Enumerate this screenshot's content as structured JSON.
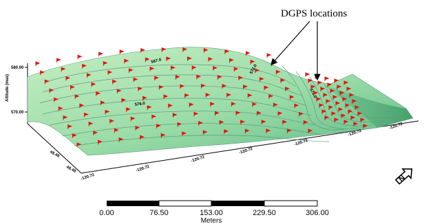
{
  "annotation": {
    "text": "DGPS locations"
  },
  "axes": {
    "z_label": "Altitude (mas)",
    "z_ticks": [
      "580.00",
      "570.00"
    ],
    "y_ticks": [
      "48.48",
      "48.48"
    ],
    "x_ticks": [
      "-120.72",
      "-120.72",
      "-120.72",
      "-120.72",
      "-120.72",
      "-120.72",
      "-120.72"
    ]
  },
  "contour_labels": [
    "567.0",
    "576.0",
    "572.0",
    "570.0"
  ],
  "scale_bar": {
    "ticks": [
      "0.00",
      "76.50",
      "153.00",
      "229.50",
      "306.00"
    ],
    "unit": "Meters"
  },
  "north_arrow": {
    "letter": "N",
    "icon": "north-arrow-icon"
  },
  "colors": {
    "surface_light": "#c6eec2",
    "surface_mid": "#8fd6a0",
    "surface_dark": "#45a36e",
    "contour": "#5f9c80",
    "marker": "#e1150f"
  }
}
